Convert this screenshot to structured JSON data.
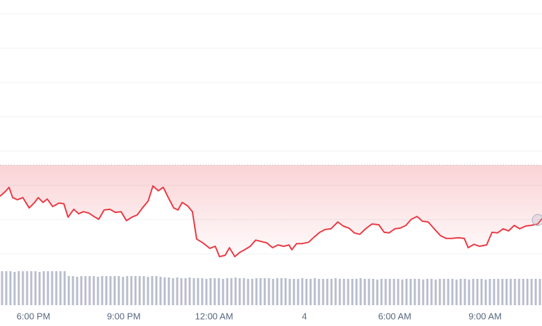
{
  "chart_data": [
    {
      "type": "line",
      "color": "#ea3943",
      "baseline": 2.59,
      "grid": true,
      "xlim": [
        16.89,
        34.89
      ],
      "xticks": [
        {
          "value": 18,
          "label": "6:00 PM"
        },
        {
          "value": 21,
          "label": "9:00 PM"
        },
        {
          "value": 24,
          "label": "12:00 AM"
        },
        {
          "value": 27,
          "label": "4"
        },
        {
          "value": 30,
          "label": "6:00 AM"
        },
        {
          "value": 33,
          "label": "9:00 AM"
        }
      ],
      "ylim": [
        0,
        7
      ],
      "yticks": [
        0,
        1,
        2,
        3,
        4,
        5,
        6,
        7
      ],
      "x": [
        16.89,
        17.07,
        17.19,
        17.31,
        17.47,
        17.65,
        17.86,
        18.04,
        18.16,
        18.32,
        18.46,
        18.64,
        18.85,
        19.01,
        19.15,
        19.34,
        19.5,
        19.66,
        19.84,
        20.01,
        20.17,
        20.35,
        20.54,
        20.72,
        20.91,
        21.09,
        21.27,
        21.44,
        21.62,
        21.81,
        21.97,
        22.15,
        22.31,
        22.48,
        22.66,
        22.8,
        22.94,
        23.12,
        23.28,
        23.42,
        23.63,
        23.86,
        24.04,
        24.18,
        24.37,
        24.51,
        24.69,
        24.85,
        25.01,
        25.2,
        25.38,
        25.57,
        25.75,
        25.94,
        26.12,
        26.31,
        26.49,
        26.58,
        26.74,
        26.93,
        27.14,
        27.32,
        27.51,
        27.69,
        27.88,
        28.11,
        28.29,
        28.48,
        28.66,
        28.84,
        29.03,
        29.24,
        29.47,
        29.65,
        29.81,
        30.0,
        30.18,
        30.37,
        30.55,
        30.74,
        30.92,
        31.11,
        31.31,
        31.52,
        31.71,
        31.89,
        32.12,
        32.31,
        32.44,
        32.63,
        32.81,
        33.05,
        33.23,
        33.41,
        33.6,
        33.78,
        33.97,
        34.15,
        34.34,
        34.52,
        34.75,
        34.89
      ],
      "values": [
        1.68,
        1.82,
        1.94,
        1.64,
        1.58,
        1.64,
        1.34,
        1.5,
        1.64,
        1.5,
        1.6,
        1.38,
        1.48,
        1.46,
        1.07,
        1.3,
        1.17,
        1.23,
        1.19,
        1.09,
        1.01,
        1.28,
        1.3,
        1.21,
        1.23,
        0.97,
        1.07,
        1.13,
        1.34,
        1.54,
        1.98,
        1.84,
        1.94,
        1.64,
        1.34,
        1.28,
        1.5,
        1.4,
        1.23,
        0.43,
        0.32,
        0.16,
        0.22,
        -0.08,
        -0.04,
        0.18,
        -0.08,
        0.04,
        0.12,
        0.22,
        0.4,
        0.36,
        0.32,
        0.18,
        0.26,
        0.22,
        0.26,
        0.12,
        0.3,
        0.3,
        0.34,
        0.49,
        0.63,
        0.71,
        0.73,
        0.93,
        0.81,
        0.75,
        0.61,
        0.57,
        0.73,
        0.87,
        0.85,
        0.63,
        0.61,
        0.73,
        0.75,
        0.83,
        1.01,
        1.09,
        0.95,
        0.93,
        0.73,
        0.53,
        0.45,
        0.45,
        0.47,
        0.45,
        0.18,
        0.28,
        0.22,
        0.26,
        0.63,
        0.61,
        0.73,
        0.67,
        0.83,
        0.73,
        0.81,
        0.83,
        0.87,
        1.03
      ]
    },
    {
      "type": "bar",
      "color": "#b8bdcc",
      "ylim": [
        0,
        60
      ],
      "categories": [
        null,
        null,
        null,
        null,
        null,
        null,
        null,
        null,
        null,
        null,
        null,
        null,
        null,
        null,
        null,
        null,
        null,
        null,
        null,
        null,
        null,
        null,
        null,
        null,
        null,
        null,
        null,
        null,
        null,
        null,
        null,
        null,
        null,
        null,
        null,
        null,
        null,
        null,
        null,
        null,
        null,
        null,
        null,
        null,
        null,
        null,
        null,
        null,
        null,
        null,
        null,
        null,
        null,
        null,
        null,
        null,
        null,
        null,
        null,
        null,
        null,
        null,
        null,
        null,
        null,
        null,
        null,
        null,
        null,
        null,
        null,
        null,
        null,
        null,
        null,
        null,
        null,
        null,
        null,
        null,
        null,
        null,
        null,
        null,
        null,
        null,
        null,
        null,
        null,
        null,
        null,
        null,
        null,
        null,
        null,
        null,
        null,
        null,
        null,
        null,
        null,
        null,
        null,
        null,
        null,
        null,
        null,
        null,
        null,
        null,
        null,
        null,
        null,
        null,
        null,
        null,
        null,
        null,
        null,
        null,
        null,
        null,
        null,
        null,
        null,
        null,
        null,
        null,
        null,
        null
      ],
      "values": [
        49,
        49,
        49,
        48,
        49,
        49,
        49,
        49,
        49,
        48,
        49,
        49,
        49,
        49,
        49,
        49,
        42,
        42,
        41,
        42,
        42,
        42,
        42,
        41,
        42,
        42,
        42,
        42,
        42,
        41,
        42,
        42,
        42,
        42,
        42,
        41,
        42,
        42,
        41,
        40,
        40,
        39,
        40,
        39,
        39,
        40,
        39,
        39,
        39,
        38,
        39,
        39,
        39,
        38,
        39,
        39,
        40,
        39,
        39,
        38,
        38,
        39,
        39,
        39,
        39,
        38,
        39,
        39,
        39,
        38,
        38,
        38,
        39,
        38,
        38,
        39,
        38,
        38,
        38,
        38,
        39,
        38,
        38,
        38,
        38,
        38,
        39,
        38,
        38,
        38,
        37,
        38,
        38,
        38,
        38,
        38,
        37,
        38,
        38,
        38,
        38,
        37,
        38,
        38,
        37,
        38,
        38,
        38,
        38,
        37,
        38,
        38,
        37,
        38,
        38,
        38,
        37,
        38,
        38,
        38,
        38,
        38,
        38,
        38,
        38,
        38,
        38,
        38,
        38,
        38
      ]
    }
  ]
}
